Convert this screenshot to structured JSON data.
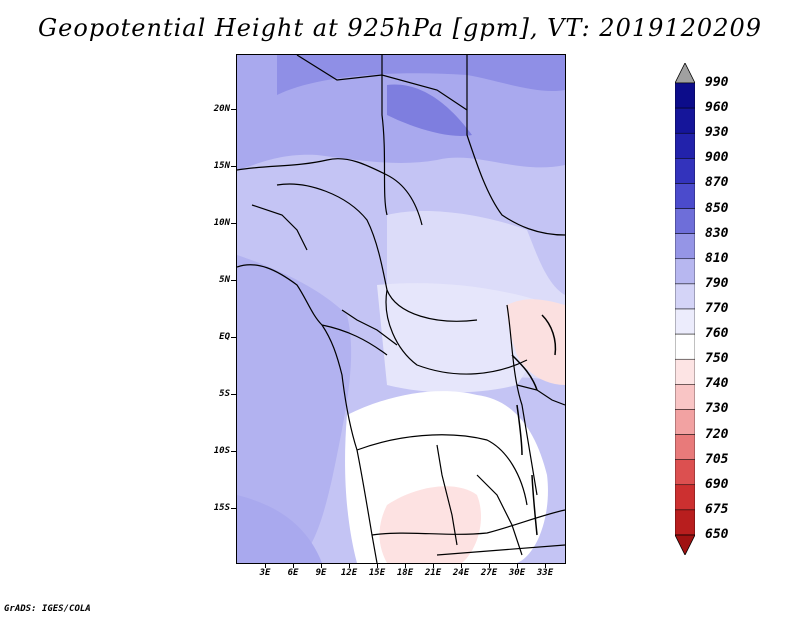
{
  "title": "Geopotential Height at 925hPa [gpm], VT: 2019120209",
  "footer": "GrADS: IGES/COLA",
  "map": {
    "lat_labels": [
      "20N",
      "15N",
      "10N",
      "5N",
      "EQ",
      "5S",
      "10S",
      "15S"
    ],
    "lon_labels": [
      "3E",
      "6E",
      "9E",
      "12E",
      "15E",
      "18E",
      "21E",
      "24E",
      "27E",
      "30E",
      "33E"
    ],
    "region": "Central Africa"
  },
  "colorbar": {
    "levels": [
      "990",
      "960",
      "930",
      "900",
      "870",
      "850",
      "830",
      "810",
      "790",
      "770",
      "760",
      "750",
      "740",
      "730",
      "720",
      "705",
      "690",
      "675",
      "650"
    ],
    "colors": [
      "#a0a0a0",
      "#0c0c8a",
      "#15159a",
      "#2222ab",
      "#3333bc",
      "#4b4bcc",
      "#6e6ed9",
      "#9595e6",
      "#b7b7f0",
      "#d4d4f7",
      "#ececfc",
      "#ffffff",
      "#fde4e4",
      "#f9c5c5",
      "#f2a2a2",
      "#e87a7a",
      "#dc5050",
      "#cc3030",
      "#b81e1e",
      "#a01212"
    ]
  }
}
